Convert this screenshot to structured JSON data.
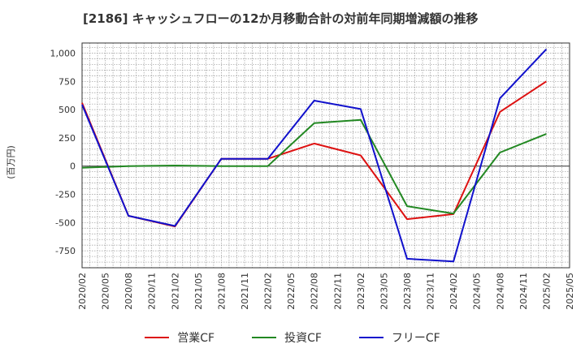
{
  "chart_data": {
    "type": "line",
    "title": "[2186]  キャッシュフローの12か月移動合計の対前年同期増減額の推移",
    "ylabel": "(百万円)",
    "xlabel": "",
    "ylim": [
      -900,
      1090
    ],
    "yticks": [
      -750,
      -500,
      -250,
      0,
      250,
      500,
      750,
      1000
    ],
    "ytick_labels": [
      "-750",
      "-500",
      "-250",
      "0",
      "250",
      "500",
      "750",
      "1,000"
    ],
    "categories": [
      "2020/02",
      "2020/05",
      "2020/08",
      "2020/11",
      "2021/02",
      "2021/05",
      "2021/08",
      "2021/11",
      "2022/02",
      "2022/05",
      "2022/08",
      "2022/11",
      "2023/02",
      "2023/05",
      "2023/08",
      "2023/11",
      "2024/02",
      "2024/05",
      "2024/08",
      "2024/11",
      "2025/02",
      "2025/05"
    ],
    "series": [
      {
        "name": "営業CF",
        "color": "#dd1111",
        "values": [
          560,
          null,
          -440,
          null,
          -535,
          null,
          65,
          null,
          65,
          null,
          200,
          null,
          95,
          null,
          -470,
          null,
          -425,
          null,
          480,
          null,
          750,
          null
        ]
      },
      {
        "name": "投資CF",
        "color": "#228822",
        "values": [
          -15,
          null,
          0,
          null,
          5,
          null,
          0,
          null,
          0,
          null,
          380,
          null,
          410,
          null,
          -355,
          null,
          -420,
          null,
          120,
          null,
          285,
          null
        ]
      },
      {
        "name": "フリーCF",
        "color": "#1111cc",
        "values": [
          545,
          null,
          -440,
          null,
          -530,
          null,
          65,
          null,
          65,
          null,
          580,
          null,
          505,
          null,
          -820,
          null,
          -845,
          null,
          600,
          null,
          1035,
          null
        ]
      }
    ],
    "grid": true,
    "legend": "bottom"
  }
}
